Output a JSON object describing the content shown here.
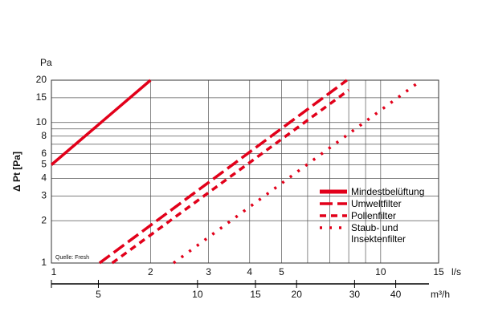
{
  "chart_data": {
    "type": "line",
    "ylabel": "Δ Pt [Pa]",
    "yunit": "Pa",
    "xlabel": "l/s",
    "x2label": "m³/h",
    "source": "Quelle: Fresh",
    "log_x": true,
    "log_y": true,
    "grid": true,
    "xlim": [
      1,
      15
    ],
    "xticks": [
      1,
      2,
      3,
      4,
      5,
      10,
      15
    ],
    "minor_xgrid": [
      6,
      7,
      8,
      9
    ],
    "ylim": [
      1,
      20
    ],
    "yticks": [
      1,
      2,
      3,
      4,
      5,
      6,
      8,
      10,
      15,
      20
    ],
    "minor_ygrid": [
      7,
      9
    ],
    "x2lim": [
      3.6,
      54
    ],
    "x2ticks": [
      5,
      10,
      15,
      20,
      30,
      40
    ],
    "legend": "right",
    "series": [
      {
        "name": "Mindestbelüftung",
        "color": "#e2001a",
        "style": "solid",
        "x": [
          1,
          2
        ],
        "values": [
          5,
          20
        ]
      },
      {
        "name": "Umweltfilter",
        "color": "#e2001a",
        "style": "long-dash",
        "x": [
          1.4,
          7.9
        ],
        "values": [
          1,
          20
        ]
      },
      {
        "name": "Pollenfilter",
        "color": "#e2001a",
        "style": "dash",
        "x": [
          1.53,
          8.0
        ],
        "values": [
          1,
          17
        ]
      },
      {
        "name": "Staub- und\nInsektenfilter",
        "color": "#e2001a",
        "style": "dot",
        "x": [
          2.35,
          13.3
        ],
        "values": [
          1,
          20
        ]
      }
    ]
  }
}
